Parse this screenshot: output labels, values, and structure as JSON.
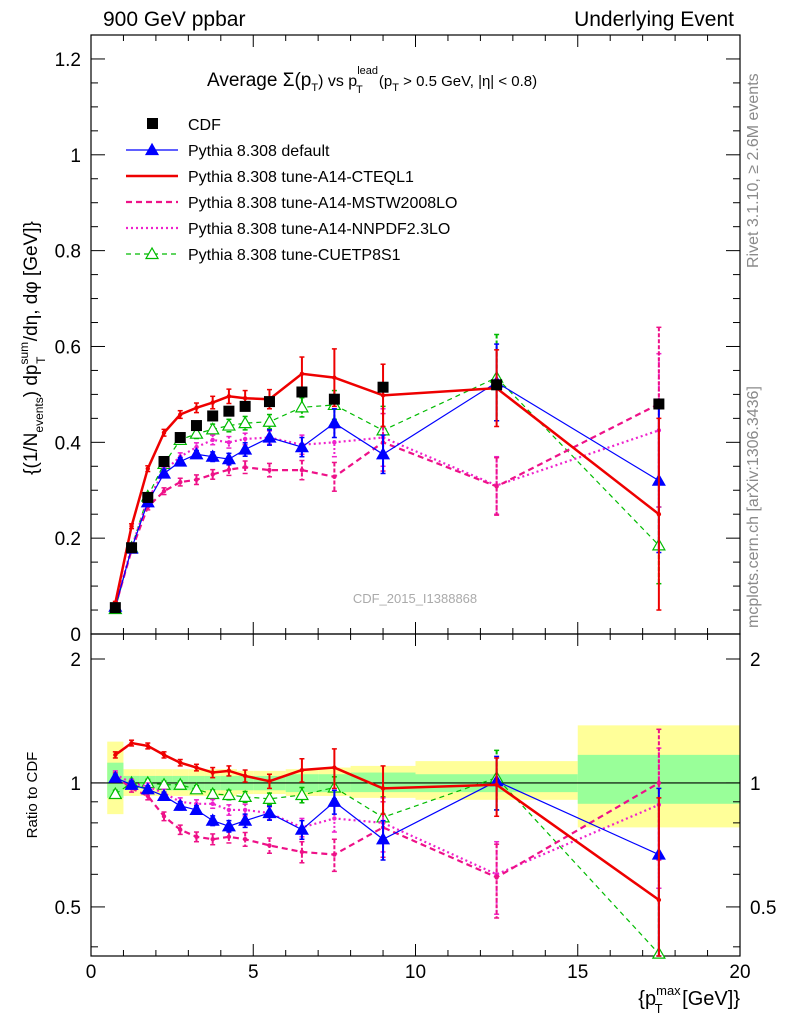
{
  "header": {
    "left": "900 GeV ppbar",
    "right": "Underlying Event"
  },
  "side_labels": {
    "rivet": "Rivet 3.1.10, ≥ 2.6M events",
    "mcplots": "mcplots.cern.ch [arXiv:1306.3436]"
  },
  "watermark": "CDF_2015_I1388868",
  "plot_title": {
    "pre": "Average ",
    "sigma": "Σ(p",
    "sub_t": "T",
    "vs": ") vs p",
    "sup_lead": "lead",
    "sub_t2": "T",
    "post": " (p",
    "sub_t3": "T",
    "cut": " > 0.5 GeV, |η| < 0.8)"
  },
  "ylabel_main": {
    "p1": "{(1/N",
    "sub1": "events",
    "p2": ") dp",
    "sup2": "sum",
    "sub2": "T",
    "p3": " /dη, dφ [GeV]}"
  },
  "ylabel_ratio": "Ratio to CDF",
  "xlabel": {
    "p1": "{p",
    "sup": "max",
    "sub": "T",
    "p2": " [GeV]}"
  },
  "colors": {
    "cdf": "#000000",
    "default": "#0000ff",
    "a14_cteql1": "#ee0000",
    "a14_mstw": "#ee1188",
    "a14_nnpdf": "#ee22cc",
    "cuetp8s1": "#00bb00",
    "band_yellow": "#ffff99",
    "band_green": "#99ff99"
  },
  "chart_data": [
    {
      "type": "scatter",
      "panel": "main",
      "xlim": [
        0,
        20
      ],
      "ylim": [
        0,
        1.25
      ],
      "x_ticks": [
        0,
        5,
        10,
        15,
        20
      ],
      "y_ticks": [
        0,
        0.2,
        0.4,
        0.6,
        0.8,
        1,
        1.2
      ],
      "y_tick_labels": [
        "0",
        "0.2",
        "0.4",
        "0.6",
        "0.8",
        "1",
        "1.2"
      ],
      "legend_position": "top-left",
      "series": [
        {
          "key": "cdf",
          "name": "CDF",
          "style": "square",
          "x": [
            0.75,
            1.25,
            1.75,
            2.25,
            2.75,
            3.25,
            3.75,
            4.25,
            4.75,
            5.5,
            6.5,
            7.5,
            9.0,
            12.5,
            17.5
          ],
          "y": [
            0.055,
            0.18,
            0.285,
            0.36,
            0.41,
            0.435,
            0.455,
            0.465,
            0.475,
            0.485,
            0.505,
            0.49,
            0.515,
            0.52,
            0.48
          ]
        },
        {
          "key": "default",
          "name": "Pythia 8.308 default",
          "style": "solid-triangle",
          "x": [
            0.75,
            1.25,
            1.75,
            2.25,
            2.75,
            3.25,
            3.75,
            4.25,
            4.75,
            5.5,
            6.5,
            7.5,
            9.0,
            12.5,
            17.5
          ],
          "y": [
            0.057,
            0.178,
            0.275,
            0.335,
            0.36,
            0.375,
            0.37,
            0.365,
            0.385,
            0.41,
            0.39,
            0.44,
            0.375,
            0.525,
            0.32
          ],
          "err": [
            0.003,
            0.006,
            0.008,
            0.008,
            0.008,
            0.008,
            0.01,
            0.012,
            0.014,
            0.016,
            0.02,
            0.03,
            0.04,
            0.08,
            0.15
          ]
        },
        {
          "key": "a14_cteql1",
          "name": "Pythia 8.308 tune-A14-CTEQL1",
          "style": "solid",
          "x": [
            0.75,
            1.25,
            1.75,
            2.25,
            2.75,
            3.25,
            3.75,
            4.25,
            4.75,
            5.5,
            6.5,
            7.5,
            9.0,
            12.5,
            17.5
          ],
          "y": [
            0.065,
            0.225,
            0.345,
            0.42,
            0.458,
            0.472,
            0.483,
            0.496,
            0.492,
            0.49,
            0.543,
            0.535,
            0.498,
            0.513,
            0.25
          ],
          "err": [
            0.003,
            0.005,
            0.006,
            0.007,
            0.008,
            0.01,
            0.013,
            0.015,
            0.016,
            0.02,
            0.035,
            0.06,
            0.065,
            0.08,
            0.2
          ]
        },
        {
          "key": "a14_mstw",
          "name": "Pythia 8.308 tune-A14-MSTW2008LO",
          "style": "dashed",
          "x": [
            0.75,
            1.25,
            1.75,
            2.25,
            2.75,
            3.25,
            3.75,
            4.25,
            4.75,
            5.5,
            6.5,
            7.5,
            9.0,
            12.5,
            17.5
          ],
          "y": [
            0.057,
            0.175,
            0.265,
            0.298,
            0.317,
            0.322,
            0.333,
            0.343,
            0.348,
            0.342,
            0.342,
            0.328,
            0.4,
            0.308,
            0.48
          ],
          "err": [
            0.003,
            0.005,
            0.006,
            0.007,
            0.008,
            0.01,
            0.01,
            0.012,
            0.013,
            0.014,
            0.02,
            0.03,
            0.06,
            0.06,
            0.16
          ]
        },
        {
          "key": "a14_nnpdf",
          "name": "Pythia 8.308 tune-A14-NNPDF2.3LO",
          "style": "dotted",
          "x": [
            0.75,
            1.25,
            1.75,
            2.25,
            2.75,
            3.25,
            3.75,
            4.25,
            4.75,
            5.5,
            6.5,
            7.5,
            9.0,
            12.5,
            17.5
          ],
          "y": [
            0.058,
            0.18,
            0.28,
            0.34,
            0.37,
            0.39,
            0.405,
            0.4,
            0.407,
            0.41,
            0.395,
            0.4,
            0.41,
            0.31,
            0.425
          ],
          "err": [
            0.003,
            0.005,
            0.006,
            0.007,
            0.008,
            0.009,
            0.01,
            0.012,
            0.012,
            0.014,
            0.02,
            0.03,
            0.06,
            0.06,
            0.16
          ]
        },
        {
          "key": "cuetp8s1",
          "name": "Pythia 8.308 tune-CUETP8S1",
          "style": "dashed-open-triangle",
          "x": [
            0.75,
            1.25,
            1.75,
            2.25,
            2.75,
            3.25,
            3.75,
            4.25,
            4.75,
            5.5,
            6.5,
            7.5,
            9.0,
            12.5,
            17.5
          ],
          "y": [
            0.052,
            0.18,
            0.287,
            0.355,
            0.405,
            0.418,
            0.427,
            0.435,
            0.44,
            0.443,
            0.473,
            0.478,
            0.425,
            0.535,
            0.185
          ],
          "err": [
            0.003,
            0.005,
            0.006,
            0.008,
            0.009,
            0.01,
            0.011,
            0.013,
            0.014,
            0.015,
            0.02,
            0.03,
            0.05,
            0.09,
            0.08
          ]
        }
      ]
    },
    {
      "type": "line",
      "panel": "ratio",
      "xlim": [
        0,
        20
      ],
      "ylim": [
        0.38,
        2.3
      ],
      "y_scale": "log",
      "y_ticks": [
        0.5,
        1,
        2
      ],
      "y_tick_labels": [
        "0.5",
        "1",
        "2"
      ],
      "x_tick_labels": [
        "0",
        "5",
        "10",
        "15",
        "20"
      ],
      "reference_line": 1,
      "bands": {
        "bin_edges": [
          0.5,
          1.0,
          1.5,
          2.0,
          2.5,
          3.0,
          3.5,
          4.0,
          4.5,
          5.0,
          6.0,
          7.0,
          8.0,
          10.0,
          15.0,
          20.0
        ],
        "yellow": [
          [
            0.84,
            1.26
          ],
          [
            0.93,
            1.08
          ],
          [
            0.93,
            1.08
          ],
          [
            0.93,
            1.08
          ],
          [
            0.93,
            1.08
          ],
          [
            0.93,
            1.08
          ],
          [
            0.93,
            1.08
          ],
          [
            0.93,
            1.08
          ],
          [
            0.94,
            1.07
          ],
          [
            0.94,
            1.07
          ],
          [
            0.93,
            1.08
          ],
          [
            0.93,
            1.09
          ],
          [
            0.92,
            1.1
          ],
          [
            0.91,
            1.13
          ],
          [
            0.78,
            1.38
          ]
        ],
        "green": [
          [
            0.92,
            1.12
          ],
          [
            0.97,
            1.04
          ],
          [
            0.97,
            1.04
          ],
          [
            0.96,
            1.04
          ],
          [
            0.96,
            1.04
          ],
          [
            0.96,
            1.04
          ],
          [
            0.96,
            1.04
          ],
          [
            0.96,
            1.04
          ],
          [
            0.96,
            1.04
          ],
          [
            0.96,
            1.04
          ],
          [
            0.95,
            1.05
          ],
          [
            0.95,
            1.05
          ],
          [
            0.95,
            1.06
          ],
          [
            0.95,
            1.05
          ],
          [
            0.89,
            1.17
          ]
        ]
      },
      "series": [
        {
          "key": "default",
          "style": "solid-triangle",
          "x": [
            0.75,
            1.25,
            1.75,
            2.25,
            2.75,
            3.25,
            3.75,
            4.25,
            4.75,
            5.5,
            6.5,
            7.5,
            9.0,
            12.5,
            17.5
          ],
          "y": [
            1.03,
            0.99,
            0.965,
            0.93,
            0.88,
            0.86,
            0.81,
            0.785,
            0.81,
            0.845,
            0.77,
            0.9,
            0.73,
            1.01,
            0.67
          ],
          "err": [
            0.02,
            0.02,
            0.02,
            0.02,
            0.02,
            0.02,
            0.022,
            0.025,
            0.03,
            0.033,
            0.04,
            0.06,
            0.08,
            0.15,
            0.3
          ]
        },
        {
          "key": "a14_cteql1",
          "style": "solid",
          "x": [
            0.75,
            1.25,
            1.75,
            2.25,
            2.75,
            3.25,
            3.75,
            4.25,
            4.75,
            5.5,
            6.5,
            7.5,
            9.0,
            12.5,
            17.5
          ],
          "y": [
            1.17,
            1.25,
            1.23,
            1.17,
            1.12,
            1.09,
            1.06,
            1.07,
            1.04,
            1.01,
            1.075,
            1.09,
            0.97,
            0.99,
            0.52
          ],
          "err": [
            0.02,
            0.02,
            0.02,
            0.02,
            0.02,
            0.02,
            0.03,
            0.03,
            0.035,
            0.04,
            0.07,
            0.12,
            0.13,
            0.16,
            0.4
          ]
        },
        {
          "key": "a14_mstw",
          "style": "dashed",
          "x": [
            0.75,
            1.25,
            1.75,
            2.25,
            2.75,
            3.25,
            3.75,
            4.25,
            4.75,
            5.5,
            6.5,
            7.5,
            9.0,
            12.5,
            17.5
          ],
          "y": [
            1.04,
            0.97,
            0.93,
            0.83,
            0.77,
            0.74,
            0.73,
            0.74,
            0.73,
            0.705,
            0.68,
            0.67,
            0.78,
            0.59,
            1.0
          ],
          "err": [
            0.02,
            0.02,
            0.02,
            0.02,
            0.02,
            0.02,
            0.022,
            0.025,
            0.028,
            0.03,
            0.04,
            0.06,
            0.12,
            0.12,
            0.35
          ]
        },
        {
          "key": "a14_nnpdf",
          "style": "dotted",
          "x": [
            0.75,
            1.25,
            1.75,
            2.25,
            2.75,
            3.25,
            3.75,
            4.25,
            4.75,
            5.5,
            6.5,
            7.5,
            9.0,
            12.5,
            17.5
          ],
          "y": [
            1.05,
            1.0,
            0.98,
            0.945,
            0.9,
            0.89,
            0.89,
            0.86,
            0.86,
            0.845,
            0.78,
            0.82,
            0.8,
            0.6,
            0.885
          ],
          "err": [
            0.02,
            0.02,
            0.02,
            0.02,
            0.02,
            0.02,
            0.022,
            0.025,
            0.028,
            0.03,
            0.04,
            0.06,
            0.12,
            0.12,
            0.33
          ]
        },
        {
          "key": "cuetp8s1",
          "style": "dashed-open-triangle",
          "x": [
            0.75,
            1.25,
            1.75,
            2.25,
            2.75,
            3.25,
            3.75,
            4.25,
            4.75,
            5.5,
            6.5,
            7.5,
            9.0,
            12.5,
            17.5
          ],
          "y": [
            0.94,
            1.0,
            1.0,
            0.99,
            0.99,
            0.965,
            0.94,
            0.935,
            0.925,
            0.915,
            0.935,
            0.975,
            0.825,
            1.03,
            0.385
          ],
          "err": [
            0.02,
            0.02,
            0.02,
            0.02,
            0.02,
            0.02,
            0.022,
            0.025,
            0.028,
            0.03,
            0.04,
            0.06,
            0.1,
            0.17,
            0.17
          ]
        }
      ]
    }
  ]
}
